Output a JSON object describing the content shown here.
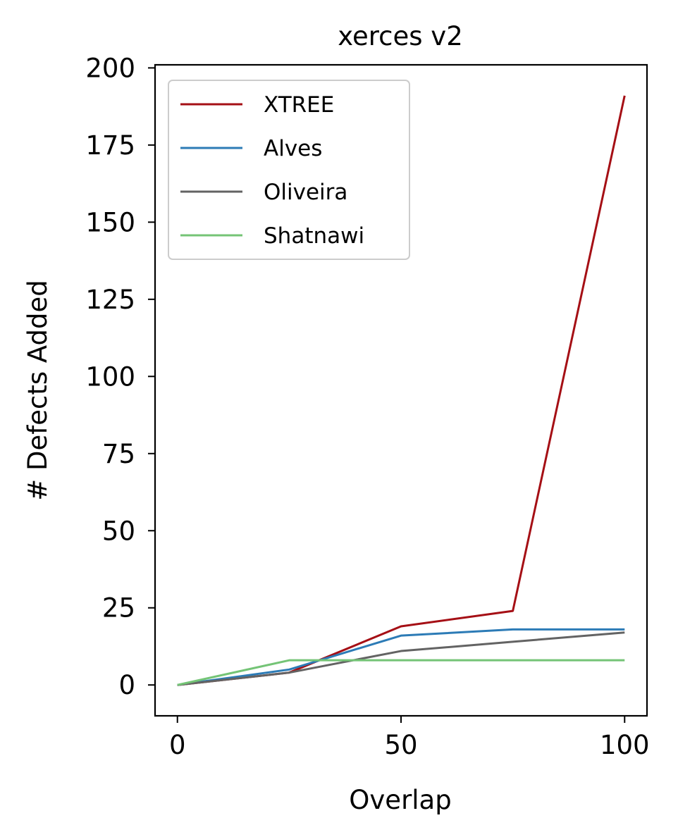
{
  "chart_data": {
    "type": "line",
    "title": "xerces v2",
    "xlabel": "Overlap",
    "ylabel": "# Defects Added",
    "x": [
      0,
      25,
      50,
      75,
      100
    ],
    "xlim": [
      -5,
      105
    ],
    "ylim": [
      -10,
      201
    ],
    "xticks": [
      "0",
      "50",
      "100"
    ],
    "xtick_values": [
      0,
      50,
      100
    ],
    "yticks": [
      "0",
      "25",
      "50",
      "75",
      "100",
      "125",
      "150",
      "175",
      "200"
    ],
    "ytick_values": [
      0,
      25,
      50,
      75,
      100,
      125,
      150,
      175,
      200
    ],
    "grid": false,
    "legend_position": "top-left",
    "series": [
      {
        "name": "XTREE",
        "color": "#a50f15",
        "values": [
          0,
          4,
          19,
          24,
          191
        ]
      },
      {
        "name": "Alves",
        "color": "#2c7bb6",
        "values": [
          0,
          5,
          16,
          18,
          18
        ]
      },
      {
        "name": "Oliveira",
        "color": "#636363",
        "values": [
          0,
          4,
          11,
          14,
          17
        ]
      },
      {
        "name": "Shatnawi",
        "color": "#74c476",
        "values": [
          0,
          8,
          8,
          8,
          8
        ]
      }
    ]
  }
}
